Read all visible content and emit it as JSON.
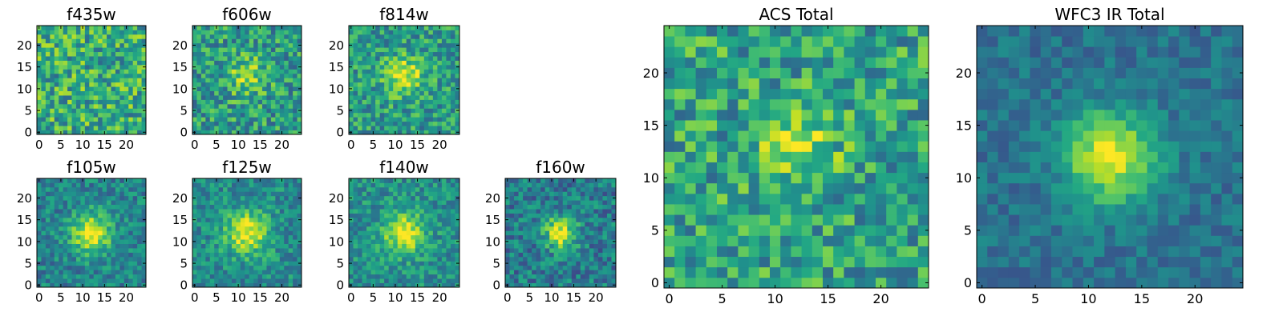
{
  "chart_data": [
    {
      "type": "heatmap",
      "title": "f435w",
      "grid_size": 25,
      "xticks": [
        0,
        5,
        10,
        15,
        20
      ],
      "yticks": [
        0,
        5,
        10,
        15,
        20
      ],
      "xlim": [
        -0.5,
        24.5
      ],
      "ylim": [
        -0.5,
        24.5
      ],
      "colormap": "viridis",
      "source_peak": 0.0,
      "noise_level": 0.55,
      "background_level": 0.62,
      "seed": 11
    },
    {
      "type": "heatmap",
      "title": "f606w",
      "grid_size": 25,
      "xticks": [
        0,
        5,
        10,
        15,
        20
      ],
      "yticks": [
        0,
        5,
        10,
        15,
        20
      ],
      "xlim": [
        -0.5,
        24.5
      ],
      "ylim": [
        -0.5,
        24.5
      ],
      "colormap": "viridis",
      "source_center": [
        12,
        13
      ],
      "source_sigma": 3.0,
      "source_peak": 0.3,
      "noise_level": 0.5,
      "background_level": 0.55,
      "seed": 23
    },
    {
      "type": "heatmap",
      "title": "f814w",
      "grid_size": 25,
      "xticks": [
        0,
        5,
        10,
        15,
        20
      ],
      "yticks": [
        0,
        5,
        10,
        15,
        20
      ],
      "xlim": [
        -0.5,
        24.5
      ],
      "ylim": [
        -0.5,
        24.5
      ],
      "colormap": "viridis",
      "source_center": [
        12,
        13
      ],
      "source_sigma": 3.0,
      "source_peak": 0.4,
      "noise_level": 0.45,
      "background_level": 0.55,
      "seed": 37
    },
    {
      "type": "heatmap",
      "title": "f105w",
      "grid_size": 25,
      "xticks": [
        0,
        5,
        10,
        15,
        20
      ],
      "yticks": [
        0,
        5,
        10,
        15,
        20
      ],
      "xlim": [
        -0.5,
        24.5
      ],
      "ylim": [
        -0.5,
        24.5
      ],
      "colormap": "viridis",
      "source_center": [
        12,
        12
      ],
      "source_sigma": 3.2,
      "source_peak": 0.55,
      "noise_level": 0.35,
      "background_level": 0.45,
      "seed": 41
    },
    {
      "type": "heatmap",
      "title": "f125w",
      "grid_size": 25,
      "xticks": [
        0,
        5,
        10,
        15,
        20
      ],
      "yticks": [
        0,
        5,
        10,
        15,
        20
      ],
      "xlim": [
        -0.5,
        24.5
      ],
      "ylim": [
        -0.5,
        24.5
      ],
      "colormap": "viridis",
      "source_center": [
        12,
        12
      ],
      "source_sigma": 3.5,
      "source_peak": 0.5,
      "noise_level": 0.35,
      "background_level": 0.48,
      "seed": 53
    },
    {
      "type": "heatmap",
      "title": "f140w",
      "grid_size": 25,
      "xticks": [
        0,
        5,
        10,
        15,
        20
      ],
      "yticks": [
        0,
        5,
        10,
        15,
        20
      ],
      "xlim": [
        -0.5,
        24.5
      ],
      "ylim": [
        -0.5,
        24.5
      ],
      "colormap": "viridis",
      "source_center": [
        12,
        12
      ],
      "source_sigma": 3.2,
      "source_peak": 0.5,
      "noise_level": 0.35,
      "background_level": 0.5,
      "seed": 67
    },
    {
      "type": "heatmap",
      "title": "f160w",
      "grid_size": 25,
      "xticks": [
        0,
        5,
        10,
        15,
        20
      ],
      "yticks": [
        0,
        5,
        10,
        15,
        20
      ],
      "xlim": [
        -0.5,
        24.5
      ],
      "ylim": [
        -0.5,
        24.5
      ],
      "colormap": "viridis",
      "source_center": [
        12,
        12
      ],
      "source_sigma": 2.6,
      "source_peak": 0.55,
      "noise_level": 0.4,
      "background_level": 0.42,
      "seed": 71
    },
    {
      "type": "heatmap",
      "title": "ACS Total",
      "grid_size": 25,
      "xticks": [
        0,
        5,
        10,
        15,
        20
      ],
      "yticks": [
        0,
        5,
        10,
        15,
        20
      ],
      "xlim": [
        -0.5,
        24.5
      ],
      "ylim": [
        -0.5,
        24.5
      ],
      "colormap": "viridis",
      "source_center": [
        12,
        13
      ],
      "source_sigma": 2.4,
      "source_peak": 0.35,
      "noise_level": 0.5,
      "background_level": 0.58,
      "seed": 83
    },
    {
      "type": "heatmap",
      "title": "WFC3 IR Total",
      "grid_size": 25,
      "xticks": [
        0,
        5,
        10,
        15,
        20
      ],
      "yticks": [
        0,
        5,
        10,
        15,
        20
      ],
      "xlim": [
        -0.5,
        24.5
      ],
      "ylim": [
        -0.5,
        24.5
      ],
      "colormap": "viridis",
      "source_center": [
        12,
        12
      ],
      "source_sigma": 3.0,
      "source_peak": 0.6,
      "noise_level": 0.22,
      "background_level": 0.38,
      "seed": 97
    }
  ]
}
